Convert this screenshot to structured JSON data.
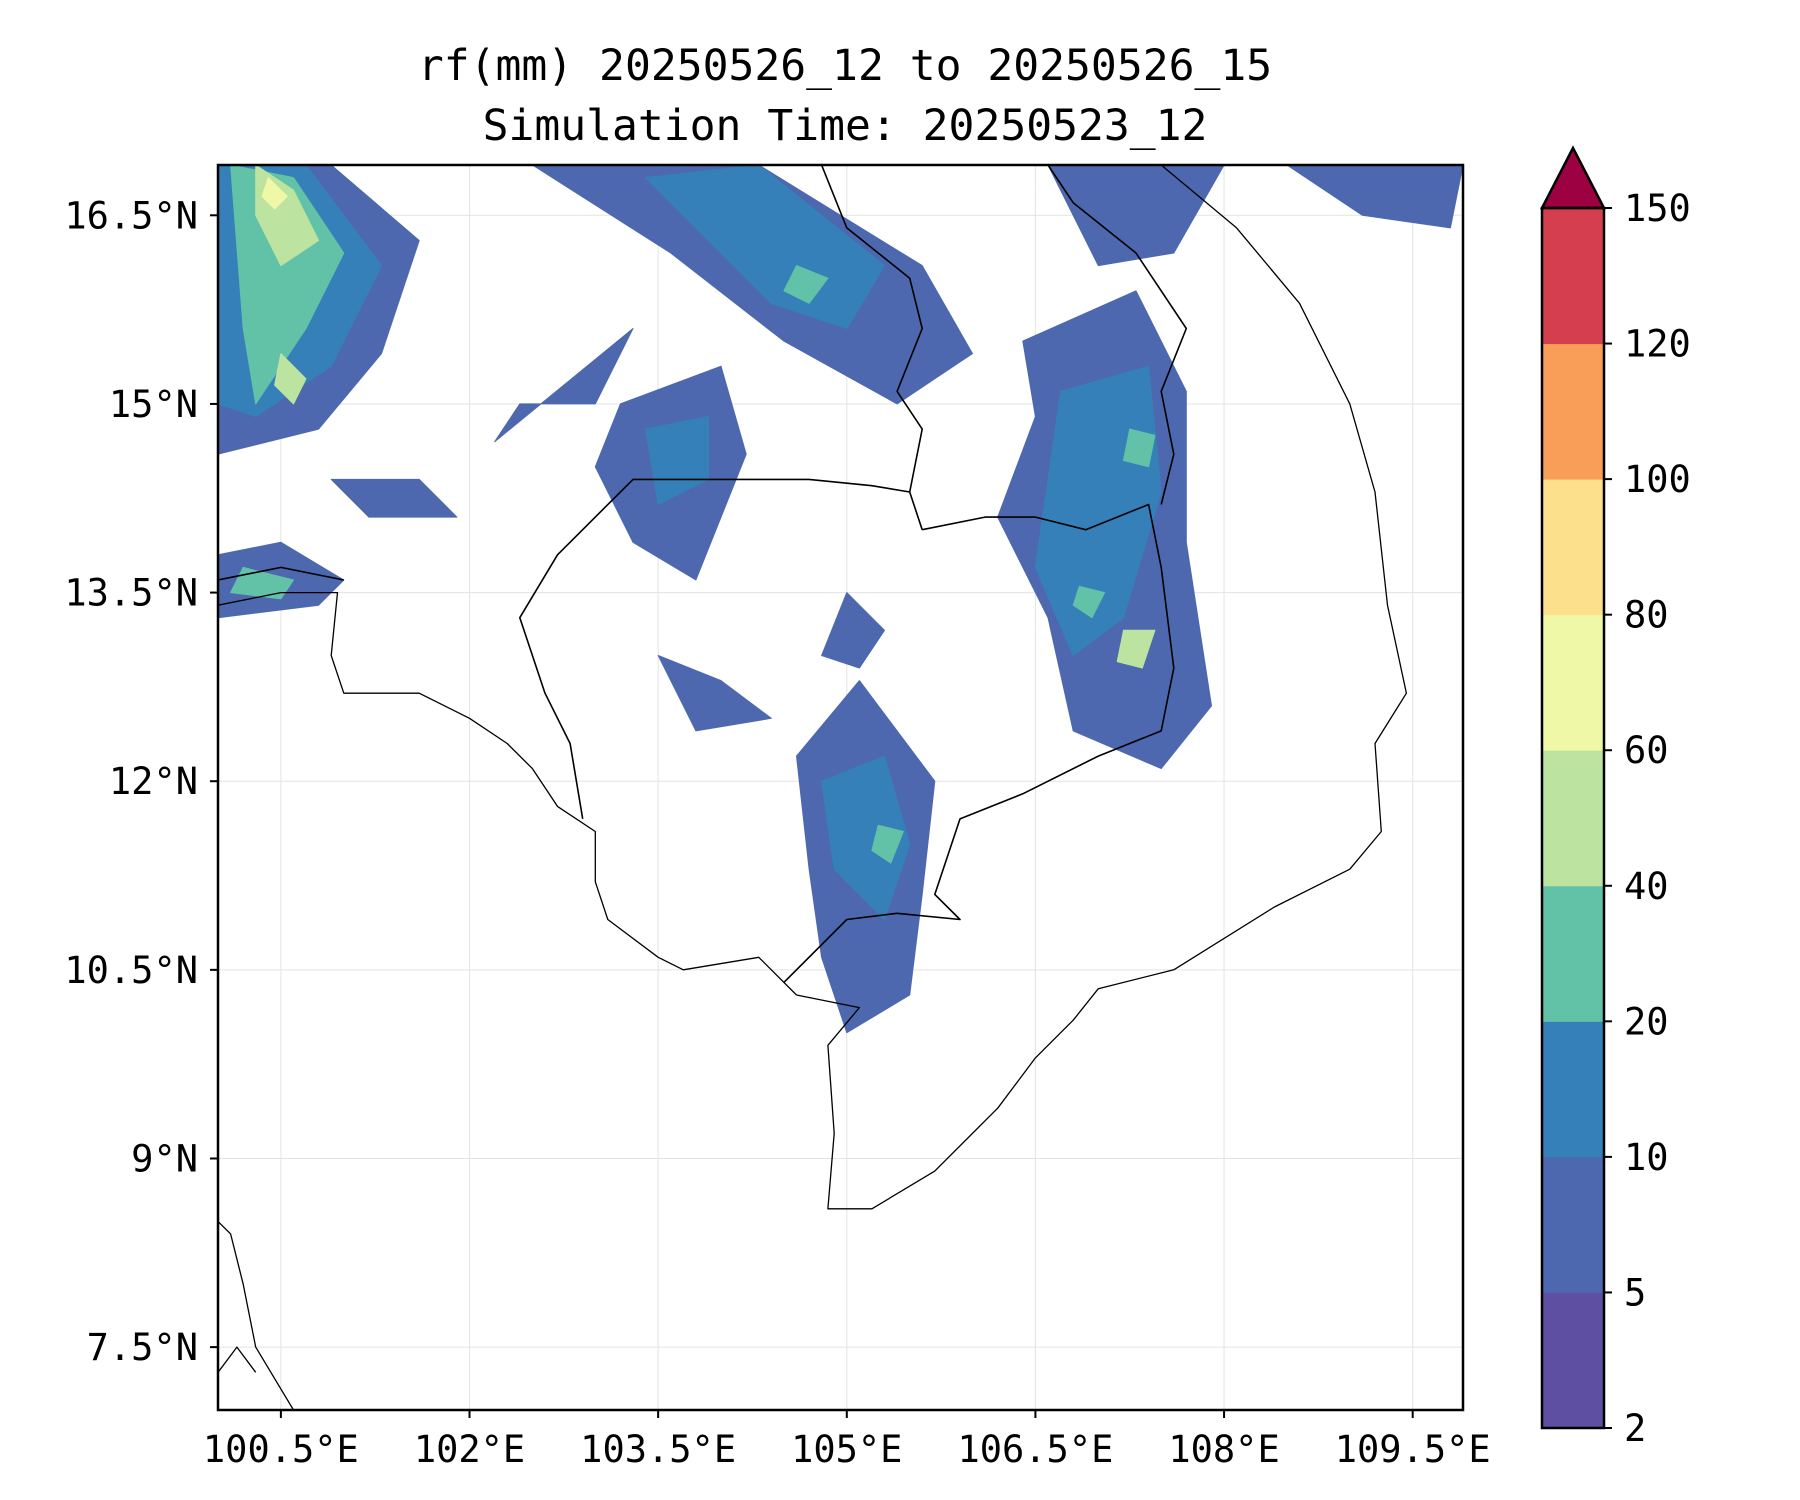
{
  "title": {
    "line1": "rf(mm) 20250526_12 to 20250526_15",
    "line2": "Simulation Time: 20250523_12"
  },
  "map": {
    "lon_range": [
      100.0,
      109.9
    ],
    "lat_range": [
      7.0,
      16.9
    ],
    "lon_ticks": [
      {
        "value": 100.5,
        "label": "100.5°E"
      },
      {
        "value": 102.0,
        "label": "102°E"
      },
      {
        "value": 103.5,
        "label": "103.5°E"
      },
      {
        "value": 105.0,
        "label": "105°E"
      },
      {
        "value": 106.5,
        "label": "106.5°E"
      },
      {
        "value": 108.0,
        "label": "108°E"
      },
      {
        "value": 109.5,
        "label": "109.5°E"
      }
    ],
    "lat_ticks": [
      {
        "value": 16.5,
        "label": "16.5°N"
      },
      {
        "value": 15.0,
        "label": "15°N"
      },
      {
        "value": 13.5,
        "label": "13.5°N"
      },
      {
        "value": 12.0,
        "label": "12°N"
      },
      {
        "value": 10.5,
        "label": "10.5°N"
      },
      {
        "value": 9.0,
        "label": "9°N"
      },
      {
        "value": 7.5,
        "label": "7.5°N"
      }
    ],
    "gridlines": true
  },
  "colorbar": {
    "levels": [
      "2",
      "5",
      "10",
      "20",
      "40",
      "60",
      "80",
      "100",
      "120",
      "150"
    ],
    "colors": [
      "#5e4fa2",
      "#4d68ae",
      "#3680b9",
      "#62c2a7",
      "#bce4a0",
      "#eff8a6",
      "#fde08b",
      "#f99e59",
      "#d53e4f"
    ],
    "extend_color": "#9e0142",
    "extend": "max"
  },
  "rain_cells": [
    {
      "id": "nw-band-1",
      "level": 1,
      "pts": [
        [
          100.0,
          16.9
        ],
        [
          100.9,
          16.9
        ],
        [
          101.6,
          16.3
        ],
        [
          101.3,
          15.4
        ],
        [
          100.8,
          14.8
        ],
        [
          100.0,
          14.6
        ]
      ]
    },
    {
      "id": "nw-band-2",
      "level": 2,
      "pts": [
        [
          100.0,
          16.9
        ],
        [
          100.7,
          16.9
        ],
        [
          101.3,
          16.1
        ],
        [
          100.9,
          15.3
        ],
        [
          100.3,
          14.9
        ],
        [
          100.0,
          15.0
        ]
      ]
    },
    {
      "id": "nw-band-3",
      "level": 3,
      "pts": [
        [
          100.1,
          16.9
        ],
        [
          100.6,
          16.8
        ],
        [
          101.0,
          16.2
        ],
        [
          100.7,
          15.6
        ],
        [
          100.3,
          15.0
        ],
        [
          100.2,
          15.6
        ]
      ]
    },
    {
      "id": "nw-band-4",
      "level": 4,
      "pts": [
        [
          100.3,
          16.9
        ],
        [
          100.6,
          16.7
        ],
        [
          100.8,
          16.3
        ],
        [
          100.5,
          16.1
        ],
        [
          100.3,
          16.5
        ]
      ]
    },
    {
      "id": "nw-band-5",
      "level": 5,
      "pts": [
        [
          100.4,
          16.8
        ],
        [
          100.55,
          16.65
        ],
        [
          100.45,
          16.55
        ],
        [
          100.35,
          16.65
        ]
      ]
    },
    {
      "id": "nw-band-6",
      "level": 4,
      "pts": [
        [
          100.5,
          15.4
        ],
        [
          100.7,
          15.2
        ],
        [
          100.6,
          15.0
        ],
        [
          100.45,
          15.15
        ]
      ]
    },
    {
      "id": "west-1",
      "level": 1,
      "pts": [
        [
          100.0,
          13.8
        ],
        [
          100.5,
          13.9
        ],
        [
          101.0,
          13.6
        ],
        [
          100.8,
          13.4
        ],
        [
          100.0,
          13.3
        ]
      ]
    },
    {
      "id": "west-2",
      "level": 3,
      "pts": [
        [
          100.2,
          13.7
        ],
        [
          100.6,
          13.6
        ],
        [
          100.5,
          13.45
        ],
        [
          100.1,
          13.5
        ]
      ]
    },
    {
      "id": "west-3",
      "level": 1,
      "pts": [
        [
          100.9,
          14.4
        ],
        [
          101.6,
          14.4
        ],
        [
          101.9,
          14.1
        ],
        [
          101.2,
          14.1
        ]
      ]
    },
    {
      "id": "nc-1",
      "level": 1,
      "pts": [
        [
          102.5,
          16.9
        ],
        [
          104.3,
          16.9
        ],
        [
          105.6,
          16.1
        ],
        [
          106.0,
          15.4
        ],
        [
          105.4,
          15.0
        ],
        [
          104.5,
          15.5
        ],
        [
          103.6,
          16.2
        ]
      ]
    },
    {
      "id": "nc-2",
      "level": 2,
      "pts": [
        [
          103.4,
          16.8
        ],
        [
          104.3,
          16.9
        ],
        [
          105.3,
          16.1
        ],
        [
          105.0,
          15.6
        ],
        [
          104.4,
          15.8
        ],
        [
          103.8,
          16.4
        ]
      ]
    },
    {
      "id": "nc-3",
      "level": 3,
      "pts": [
        [
          104.6,
          16.1
        ],
        [
          104.85,
          16.0
        ],
        [
          104.7,
          15.8
        ],
        [
          104.5,
          15.9
        ]
      ]
    },
    {
      "id": "cc-1",
      "level": 1,
      "pts": [
        [
          103.2,
          15.0
        ],
        [
          104.0,
          15.3
        ],
        [
          104.2,
          14.6
        ],
        [
          103.8,
          13.6
        ],
        [
          103.3,
          13.9
        ],
        [
          103.0,
          14.5
        ]
      ]
    },
    {
      "id": "cc-2",
      "level": 2,
      "pts": [
        [
          103.4,
          14.8
        ],
        [
          103.9,
          14.9
        ],
        [
          103.9,
          14.4
        ],
        [
          103.5,
          14.2
        ]
      ]
    },
    {
      "id": "e-1",
      "level": 1,
      "pts": [
        [
          106.4,
          15.5
        ],
        [
          107.3,
          15.9
        ],
        [
          107.7,
          15.1
        ],
        [
          107.7,
          13.9
        ],
        [
          107.9,
          12.6
        ],
        [
          107.5,
          12.1
        ],
        [
          106.8,
          12.4
        ],
        [
          106.6,
          13.3
        ],
        [
          106.2,
          14.1
        ],
        [
          106.5,
          14.9
        ]
      ]
    },
    {
      "id": "e-2",
      "level": 2,
      "pts": [
        [
          106.7,
          15.1
        ],
        [
          107.4,
          15.3
        ],
        [
          107.5,
          14.3
        ],
        [
          107.2,
          13.3
        ],
        [
          106.8,
          13.0
        ],
        [
          106.5,
          13.7
        ],
        [
          106.6,
          14.4
        ]
      ]
    },
    {
      "id": "e-3",
      "level": 3,
      "pts": [
        [
          107.25,
          14.8
        ],
        [
          107.45,
          14.75
        ],
        [
          107.4,
          14.5
        ],
        [
          107.2,
          14.55
        ]
      ]
    },
    {
      "id": "e-4",
      "level": 3,
      "pts": [
        [
          106.85,
          13.55
        ],
        [
          107.05,
          13.5
        ],
        [
          106.95,
          13.3
        ],
        [
          106.8,
          13.4
        ]
      ]
    },
    {
      "id": "e-5",
      "level": 4,
      "pts": [
        [
          107.2,
          13.2
        ],
        [
          107.45,
          13.2
        ],
        [
          107.35,
          12.9
        ],
        [
          107.15,
          12.95
        ]
      ]
    },
    {
      "id": "ne-1",
      "level": 1,
      "pts": [
        [
          106.6,
          16.9
        ],
        [
          108.0,
          16.9
        ],
        [
          107.6,
          16.2
        ],
        [
          107.0,
          16.1
        ]
      ]
    },
    {
      "id": "ne-2",
      "level": 1,
      "pts": [
        [
          108.5,
          16.9
        ],
        [
          109.9,
          16.9
        ],
        [
          109.8,
          16.4
        ],
        [
          109.1,
          16.5
        ]
      ]
    },
    {
      "id": "s-1",
      "level": 1,
      "pts": [
        [
          104.6,
          12.2
        ],
        [
          105.1,
          12.8
        ],
        [
          105.7,
          12.0
        ],
        [
          105.6,
          11.1
        ],
        [
          105.5,
          10.3
        ],
        [
          105.0,
          10.0
        ],
        [
          104.8,
          10.6
        ],
        [
          104.7,
          11.3
        ]
      ]
    },
    {
      "id": "s-2",
      "level": 2,
      "pts": [
        [
          104.8,
          12.0
        ],
        [
          105.3,
          12.2
        ],
        [
          105.5,
          11.5
        ],
        [
          105.3,
          10.9
        ],
        [
          104.9,
          11.3
        ]
      ]
    },
    {
      "id": "s-3",
      "level": 3,
      "pts": [
        [
          105.25,
          11.65
        ],
        [
          105.45,
          11.6
        ],
        [
          105.35,
          11.35
        ],
        [
          105.2,
          11.45
        ]
      ]
    },
    {
      "id": "sc-1",
      "level": 1,
      "pts": [
        [
          103.5,
          13.0
        ],
        [
          104.0,
          12.8
        ],
        [
          104.4,
          12.5
        ],
        [
          103.8,
          12.4
        ]
      ]
    },
    {
      "id": "sc-2",
      "level": 1,
      "pts": [
        [
          105.0,
          13.5
        ],
        [
          105.3,
          13.2
        ],
        [
          105.1,
          12.9
        ],
        [
          104.8,
          13.0
        ]
      ]
    },
    {
      "id": "sc-3",
      "level": 1,
      "pts": [
        [
          102.2,
          14.7
        ],
        [
          103.3,
          15.6
        ],
        [
          103.0,
          15.0
        ],
        [
          102.4,
          15.0
        ]
      ]
    }
  ],
  "coastlines": [
    {
      "id": "coast-vietnam",
      "style": "coast",
      "pts": [
        [
          107.5,
          16.9
        ],
        [
          108.1,
          16.4
        ],
        [
          108.6,
          15.8
        ],
        [
          109.0,
          15.0
        ],
        [
          109.2,
          14.3
        ],
        [
          109.3,
          13.4
        ],
        [
          109.45,
          12.7
        ],
        [
          109.2,
          12.3
        ],
        [
          109.25,
          11.6
        ],
        [
          109.0,
          11.3
        ],
        [
          108.4,
          11.0
        ],
        [
          107.6,
          10.5
        ],
        [
          107.0,
          10.35
        ],
        [
          106.8,
          10.1
        ],
        [
          106.5,
          9.8
        ],
        [
          106.2,
          9.4
        ],
        [
          105.7,
          8.9
        ],
        [
          105.2,
          8.6
        ],
        [
          104.85,
          8.6
        ],
        [
          104.9,
          9.2
        ],
        [
          104.85,
          9.9
        ],
        [
          105.1,
          10.2
        ],
        [
          104.6,
          10.3
        ]
      ]
    },
    {
      "id": "coast-cambodia-gulf",
      "style": "coast",
      "pts": [
        [
          104.6,
          10.3
        ],
        [
          104.3,
          10.6
        ],
        [
          103.7,
          10.5
        ],
        [
          103.5,
          10.6
        ],
        [
          103.1,
          10.9
        ],
        [
          103.0,
          11.2
        ],
        [
          103.0,
          11.6
        ],
        [
          102.7,
          11.8
        ],
        [
          102.5,
          12.1
        ],
        [
          102.3,
          12.3
        ],
        [
          102.0,
          12.5
        ],
        [
          101.6,
          12.7
        ],
        [
          101.0,
          12.7
        ],
        [
          100.9,
          13.0
        ],
        [
          100.95,
          13.5
        ],
        [
          100.5,
          13.5
        ],
        [
          100.0,
          13.4
        ]
      ]
    },
    {
      "id": "coast-peninsula",
      "style": "coast",
      "pts": [
        [
          100.0,
          8.5
        ],
        [
          100.1,
          8.4
        ],
        [
          100.2,
          8.0
        ],
        [
          100.3,
          7.5
        ],
        [
          100.6,
          7.0
        ]
      ]
    },
    {
      "id": "coast-peninsula-w",
      "style": "coast",
      "pts": [
        [
          100.0,
          7.3
        ],
        [
          100.15,
          7.5
        ],
        [
          100.3,
          7.3
        ]
      ]
    }
  ],
  "borders": [
    {
      "id": "border-th-kh",
      "style": "border",
      "pts": [
        [
          102.9,
          11.7
        ],
        [
          102.8,
          12.3
        ],
        [
          102.6,
          12.7
        ],
        [
          102.4,
          13.3
        ],
        [
          102.7,
          13.8
        ],
        [
          103.3,
          14.4
        ],
        [
          104.0,
          14.4
        ],
        [
          104.7,
          14.4
        ],
        [
          105.2,
          14.35
        ],
        [
          105.5,
          14.3
        ],
        [
          105.6,
          14.0
        ]
      ]
    },
    {
      "id": "border-kh-la-vn",
      "style": "border",
      "pts": [
        [
          105.6,
          14.0
        ],
        [
          106.1,
          14.1
        ],
        [
          106.5,
          14.1
        ],
        [
          106.9,
          14.0
        ],
        [
          107.4,
          14.2
        ],
        [
          107.5,
          13.7
        ],
        [
          107.6,
          12.9
        ],
        [
          107.5,
          12.4
        ],
        [
          107.0,
          12.2
        ],
        [
          106.4,
          11.9
        ],
        [
          105.9,
          11.7
        ],
        [
          105.7,
          11.1
        ],
        [
          105.9,
          10.9
        ],
        [
          105.4,
          10.95
        ],
        [
          105.0,
          10.9
        ],
        [
          104.5,
          10.4
        ]
      ]
    },
    {
      "id": "border-th-la",
      "style": "border",
      "pts": [
        [
          100.0,
          13.6
        ],
        [
          100.5,
          13.7
        ],
        [
          101.0,
          13.6
        ]
      ]
    },
    {
      "id": "border-la-th-n",
      "style": "border",
      "pts": [
        [
          104.8,
          16.9
        ],
        [
          105.0,
          16.4
        ],
        [
          105.5,
          16.0
        ],
        [
          105.6,
          15.6
        ],
        [
          105.4,
          15.1
        ],
        [
          105.6,
          14.8
        ],
        [
          105.5,
          14.3
        ]
      ]
    },
    {
      "id": "border-la-vn",
      "style": "border",
      "pts": [
        [
          106.6,
          16.9
        ],
        [
          106.8,
          16.6
        ],
        [
          107.3,
          16.2
        ],
        [
          107.7,
          15.6
        ],
        [
          107.5,
          15.1
        ],
        [
          107.6,
          14.6
        ],
        [
          107.5,
          14.2
        ]
      ]
    }
  ]
}
